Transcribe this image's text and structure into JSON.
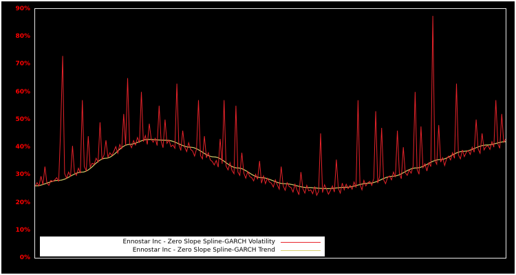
{
  "page": {
    "background": "#000000",
    "outer_border_color": "#ffffff"
  },
  "chart_data": {
    "type": "line",
    "title": "",
    "xlabel": "",
    "ylabel": "",
    "ylim": [
      0,
      90
    ],
    "grid": false,
    "legend_position": "bottom-left-inset",
    "frame_color": "#ececec",
    "axis_label_color": "#ff0000",
    "background_color": "#000000",
    "legend_background": "#ffffff",
    "y_ticks": [
      {
        "label": "0%",
        "value": 0
      },
      {
        "label": "10%",
        "value": 10
      },
      {
        "label": "20%",
        "value": 20
      },
      {
        "label": "30%",
        "value": 30
      },
      {
        "label": "40%",
        "value": 40
      },
      {
        "label": "50%",
        "value": 50
      },
      {
        "label": "60%",
        "value": 60
      },
      {
        "label": "70%",
        "value": 70
      },
      {
        "label": "80%",
        "value": 80
      },
      {
        "label": "90%",
        "value": 90
      }
    ],
    "series": [
      {
        "name": "Ennostar Inc - Zero Slope Spline-GARCH Volatility",
        "color": "#e8232a",
        "values": [
          25.8,
          27.2,
          26.0,
          29.5,
          26.4,
          33.0,
          27.0,
          26.2,
          28.0,
          27.6,
          28.2,
          29.0,
          27.6,
          47.0,
          73.0,
          30.5,
          28.8,
          31.0,
          29.4,
          40.5,
          31.0,
          29.8,
          32.4,
          30.6,
          57.0,
          33.0,
          31.5,
          44.0,
          32.8,
          34.2,
          33.8,
          36.0,
          34.6,
          49.0,
          35.5,
          37.2,
          42.5,
          36.4,
          38.0,
          37.0,
          38.5,
          40.2,
          37.8,
          41.0,
          39.3,
          52.0,
          40.6,
          65.0,
          41.2,
          39.8,
          42.4,
          40.8,
          43.5,
          41.6,
          60.0,
          42.0,
          44.2,
          41.0,
          48.5,
          42.8,
          41.8,
          43.2,
          40.6,
          55.0,
          42.2,
          39.8,
          50.0,
          41.4,
          42.6,
          40.2,
          40.8,
          39.6,
          63.0,
          41.0,
          38.8,
          46.0,
          40.0,
          38.4,
          41.6,
          39.2,
          38.6,
          36.8,
          39.4,
          57.0,
          37.0,
          35.8,
          44.0,
          36.2,
          38.0,
          35.4,
          34.8,
          33.6,
          35.2,
          32.8,
          43.0,
          34.0,
          57.0,
          33.2,
          31.8,
          34.4,
          31.6,
          30.4,
          55.0,
          31.0,
          29.8,
          38.0,
          30.6,
          28.8,
          31.2,
          29.4,
          29.0,
          27.8,
          30.2,
          28.4,
          35.0,
          27.0,
          29.6,
          26.8,
          28.8,
          27.4,
          27.0,
          25.6,
          28.2,
          26.4,
          24.8,
          33.0,
          26.0,
          24.4,
          27.2,
          25.8,
          25.4,
          23.8,
          26.6,
          24.6,
          22.8,
          31.0,
          25.0,
          23.4,
          26.2,
          24.2,
          24.6,
          23.2,
          25.8,
          22.6,
          24.0,
          45.0,
          23.6,
          26.4,
          24.8,
          23.0,
          24.4,
          26.0,
          23.8,
          35.5,
          25.2,
          23.4,
          27.0,
          24.6,
          26.6,
          25.0,
          26.2,
          24.8,
          27.4,
          25.4,
          57.0,
          26.6,
          24.6,
          28.0,
          26.0,
          27.2,
          27.6,
          26.2,
          28.8,
          53.0,
          27.0,
          29.4,
          47.0,
          28.2,
          26.8,
          29.0,
          29.6,
          28.2,
          31.0,
          29.2,
          46.0,
          30.4,
          28.6,
          40.0,
          30.8,
          29.8,
          31.8,
          30.6,
          33.2,
          60.0,
          32.0,
          30.2,
          47.5,
          32.6,
          34.0,
          31.4,
          34.4,
          33.0,
          87.5,
          35.2,
          33.8,
          48.0,
          34.6,
          36.2,
          33.4,
          35.8,
          36.8,
          35.4,
          38.0,
          36.0,
          63.0,
          37.2,
          35.8,
          39.0,
          36.6,
          38.2,
          38.8,
          37.4,
          40.0,
          38.2,
          50.0,
          39.4,
          37.8,
          45.0,
          39.0,
          40.2,
          40.6,
          39.2,
          42.0,
          40.0,
          57.0,
          41.2,
          39.6,
          52.0,
          41.8,
          43.0
        ]
      },
      {
        "name": "Ennostar Inc - Zero Slope Spline-GARCH Trend",
        "color": "#d6ce6b",
        "keypoints_x": [
          0,
          0.05,
          0.1,
          0.15,
          0.2,
          0.24,
          0.28,
          0.33,
          0.38,
          0.43,
          0.48,
          0.53,
          0.58,
          0.62,
          0.66,
          0.71,
          0.76,
          0.81,
          0.86,
          0.91,
          0.96,
          1
        ],
        "keypoints_y": [
          26,
          28,
          31,
          36,
          41,
          42.8,
          42.5,
          40,
          36.5,
          32.5,
          29,
          26.8,
          25.4,
          25,
          25.5,
          27,
          29.5,
          32.5,
          35.5,
          38.5,
          40.8,
          42
        ]
      }
    ]
  }
}
